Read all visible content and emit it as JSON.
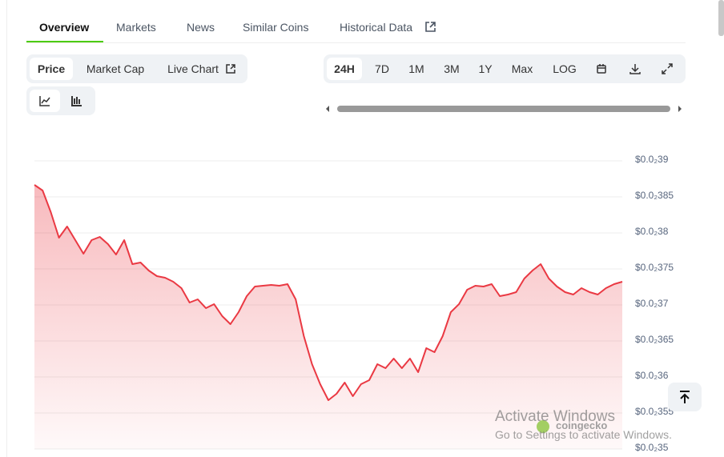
{
  "tabs": [
    "Overview",
    "Markets",
    "News",
    "Similar Coins",
    "Historical Data"
  ],
  "chart_modes": [
    "Price",
    "Market Cap",
    "Live Chart"
  ],
  "ranges": [
    "24H",
    "7D",
    "1M",
    "3M",
    "1Y",
    "Max",
    "LOG"
  ],
  "watermark": "coingecko",
  "windows_notice": {
    "title": "Activate Windows",
    "subtitle": "Go to Settings to activate Windows."
  },
  "chart_data": {
    "type": "line",
    "color": "#ea3943",
    "values": [
      0.0038667,
      0.0038589,
      0.0038289,
      0.0037933,
      0.0038089,
      0.00379,
      0.0037711,
      0.00379,
      0.0037944,
      0.0037844,
      0.00377,
      0.00379,
      0.0037567,
      0.0037589,
      0.0037478,
      0.00374,
      0.0037378,
      0.0037322,
      0.0037233,
      0.0037033,
      0.0037078,
      0.0036956,
      0.0037011,
      0.0036844,
      0.0036733,
      0.00369,
      0.0037122,
      0.0037256,
      0.0037267,
      0.0037278,
      0.0037267,
      0.0037289,
      0.0037078,
      0.0036567,
      0.0036178,
      0.00359,
      0.0035678,
      0.0035767,
      0.0035922,
      0.0035733,
      0.00359,
      0.0035956,
      0.0036178,
      0.0036122,
      0.0036256,
      0.0036122,
      0.0036256,
      0.0036067,
      0.00364,
      0.0036344,
      0.0036567,
      0.00369,
      0.0037011,
      0.0037211,
      0.0037267,
      0.0037256,
      0.0037289,
      0.0037122,
      0.0037144,
      0.0037178,
      0.0037367,
      0.0037478,
      0.0037567,
      0.0037367,
      0.0037256,
      0.0037178,
      0.0037144,
      0.0037233,
      0.0037178,
      0.0037144,
      0.0037233,
      0.0037289,
      0.0037322
    ],
    "ylim": [
      0.0035,
      0.0039
    ],
    "yticks": [
      {
        "value": 0.0039,
        "label": "$0.0₂39"
      },
      {
        "value": 0.00385,
        "label": "$0.0₂385"
      },
      {
        "value": 0.0038,
        "label": "$0.0₂38"
      },
      {
        "value": 0.00375,
        "label": "$0.0₂375"
      },
      {
        "value": 0.0037,
        "label": "$0.0₂37"
      },
      {
        "value": 0.00365,
        "label": "$0.0₂365"
      },
      {
        "value": 0.0036,
        "label": "$0.0₂36"
      },
      {
        "value": 0.00355,
        "label": "$0.0₂355"
      },
      {
        "value": 0.0035,
        "label": "$0.0₂35"
      }
    ],
    "grid": true
  }
}
